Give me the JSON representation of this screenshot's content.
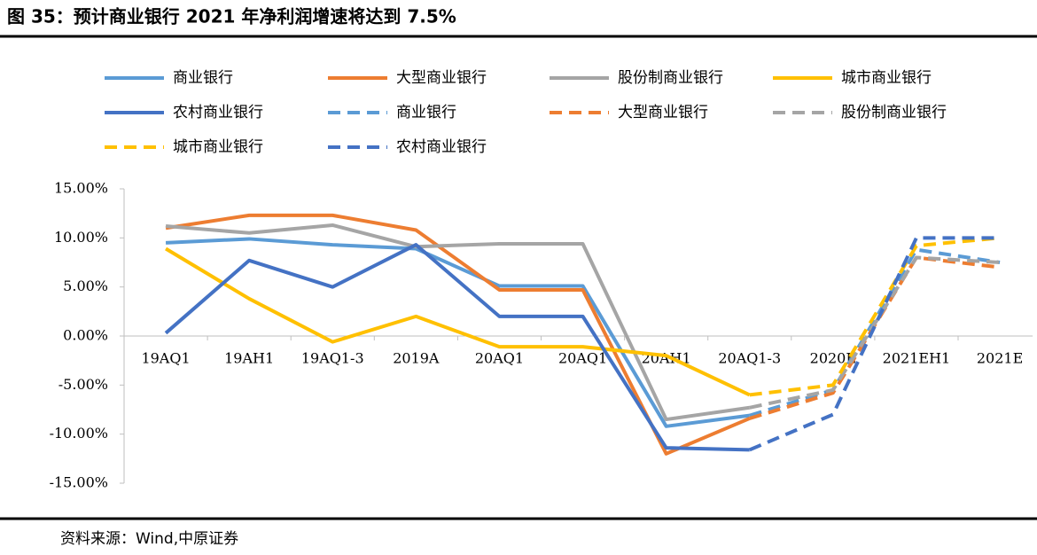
{
  "chart_data": {
    "type": "line",
    "title": "图 35：预计商业银行 2021 年净利润增速将达到 7.5%",
    "source": "资料来源：Wind,中原证券",
    "categories": [
      "19AQ1",
      "19AH1",
      "19AQ1-3",
      "2019A",
      "20AQ1",
      "20AQ1",
      "20AH1",
      "20AQ1-3",
      "2020E",
      "2021EH1",
      "2021E"
    ],
    "ylim": [
      -15,
      15
    ],
    "yticks": [
      {
        "value": -15,
        "label": "-15.00%"
      },
      {
        "value": -10,
        "label": "-10.00%"
      },
      {
        "value": -5,
        "label": "-5.00%"
      },
      {
        "value": 0,
        "label": "0.00%"
      },
      {
        "value": 5,
        "label": "5.00%"
      },
      {
        "value": 10,
        "label": "10.00%"
      },
      {
        "value": 15,
        "label": "15.00%"
      }
    ],
    "series": [
      {
        "name": "商业银行",
        "color": "#5b9bd5",
        "dash": false,
        "values": [
          9.5,
          9.9,
          9.3,
          8.9,
          5.1,
          5.1,
          -9.2,
          -8.1,
          null,
          null,
          null
        ]
      },
      {
        "name": "大型商业银行",
        "color": "#ed7d31",
        "dash": false,
        "values": [
          11.0,
          12.3,
          12.3,
          10.8,
          4.7,
          4.7,
          -12.0,
          -8.4,
          null,
          null,
          null
        ]
      },
      {
        "name": "股份制商业银行",
        "color": "#a5a5a5",
        "dash": false,
        "values": [
          11.2,
          10.5,
          11.3,
          9.1,
          9.4,
          9.4,
          -8.5,
          -7.3,
          null,
          null,
          null
        ]
      },
      {
        "name": "城市商业银行",
        "color": "#ffc000",
        "dash": false,
        "values": [
          8.9,
          3.8,
          -0.6,
          2.0,
          -1.1,
          -1.1,
          -2.0,
          -6.0,
          null,
          null,
          null
        ]
      },
      {
        "name": "农村商业银行",
        "color": "#4472c4",
        "dash": false,
        "values": [
          0.3,
          7.7,
          5.0,
          9.3,
          2.0,
          2.0,
          -11.4,
          -11.6,
          null,
          null,
          null
        ]
      },
      {
        "name": "商业银行",
        "color": "#5b9bd5",
        "dash": true,
        "values": [
          null,
          null,
          null,
          null,
          null,
          null,
          null,
          -8.1,
          -5.5,
          8.8,
          7.5
        ]
      },
      {
        "name": "大型商业银行",
        "color": "#ed7d31",
        "dash": true,
        "values": [
          null,
          null,
          null,
          null,
          null,
          null,
          null,
          -8.4,
          -5.8,
          8.0,
          7.0
        ]
      },
      {
        "name": "股份制商业银行",
        "color": "#a5a5a5",
        "dash": true,
        "values": [
          null,
          null,
          null,
          null,
          null,
          null,
          null,
          -7.3,
          -5.5,
          8.0,
          7.5
        ]
      },
      {
        "name": "城市商业银行",
        "color": "#ffc000",
        "dash": true,
        "values": [
          null,
          null,
          null,
          null,
          null,
          null,
          null,
          -6.0,
          -5.0,
          9.2,
          10.0
        ]
      },
      {
        "name": "农村商业银行",
        "color": "#4472c4",
        "dash": true,
        "values": [
          null,
          null,
          null,
          null,
          null,
          null,
          null,
          -11.6,
          -8.0,
          10.0,
          10.0
        ]
      }
    ]
  }
}
